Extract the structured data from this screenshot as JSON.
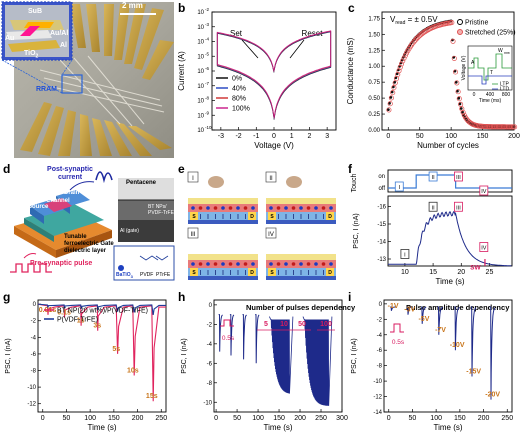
{
  "panels": {
    "a": {
      "label": "a",
      "scale_bar": "2 mm",
      "inset": {
        "top": "SuB",
        "au_al": "Au/Al",
        "au": "Au",
        "al": "Al",
        "tio2": "TiO",
        "tio2_sub": "2"
      },
      "rram": "RRAM"
    },
    "b": {
      "label": "b",
      "xlabel": "Voltage (V)",
      "ylabel": "Current (A)",
      "set": "Set",
      "reset": "Reset",
      "legend": [
        {
          "name": "0%",
          "color": "#000000"
        },
        {
          "name": "40%",
          "color": "#1f3fbf"
        },
        {
          "name": "80%",
          "color": "#cc2b2b"
        },
        {
          "name": "100%",
          "color": "#c71585"
        }
      ],
      "xticks": [
        "-3",
        "-2",
        "-1",
        "0",
        "1",
        "2",
        "3"
      ],
      "yticks": [
        "10",
        "10",
        "10",
        "10",
        "10",
        "10",
        "10",
        "10"
      ],
      "yexp": [
        "-2",
        "-3",
        "-4",
        "-5",
        "-6",
        "-7",
        "-8",
        "-9",
        "-10"
      ]
    },
    "c": {
      "label": "c",
      "vread": "V",
      "vread_sub": "read",
      "vread_val": " = ± 0.5V",
      "xlabel": "Number of cycles",
      "ylabel": "Conductance (mS)",
      "legend": [
        {
          "name": "Pristine",
          "color": "#000000"
        },
        {
          "name": "Stretched (25%)",
          "color": "#e05050"
        }
      ],
      "xticks": [
        "0",
        "50",
        "100",
        "150",
        "200"
      ],
      "yticks": [
        "0.00",
        "0.25",
        "0.50",
        "0.75",
        "1.00",
        "1.25",
        "1.50",
        "1.75"
      ],
      "inset": {
        "ylabel": "Voltage (V)",
        "xlabel": "Time (ms)",
        "xticks": [
          "0",
          "400",
          "800"
        ],
        "ltp": "LTP",
        "ltd": "LTD",
        "a": "A",
        "w": "W",
        "ts": "T",
        "ts_sub": "s",
        "stars": "***"
      }
    },
    "d": {
      "label": "d",
      "post": "Post-synaptic current",
      "pre": "Pre-synaptic pulse",
      "source": "Source",
      "channel": "Channel",
      "drain": "Drain",
      "gate": "Tunable ferroelectric Gate dielectric layer",
      "pentacene": "Pentacene",
      "bt": "BT NPs/ PVDF-TrFE",
      "alg": "Al (gate)",
      "bat": "BaTiO",
      "bat_sub": "3",
      "pvdf": "PVDF",
      "ptrfe": "PTrFE"
    },
    "e": {
      "label": "e",
      "roman": [
        "I",
        "II",
        "III",
        "IV"
      ],
      "s": "S",
      "d": "D"
    },
    "f": {
      "label": "f",
      "touch": "Touch",
      "on": "on",
      "off": "off",
      "ylabel": "PSC, I",
      "ylabel_sub": "PSC",
      "ylabel_unit": " (nA)",
      "xlabel": "Time (s)",
      "sw": "SW",
      "roman": [
        "I",
        "II",
        "III",
        "IV"
      ],
      "xticks": [
        "10",
        "15",
        "20",
        "25"
      ],
      "yticks": [
        "-16",
        "-15",
        "-14",
        "-13"
      ]
    },
    "g": {
      "label": "g",
      "ylabel": "PSC, I",
      "ylabel_sub": "PSC",
      "ylabel_unit": " (nA)",
      "xlabel": "Time (s)",
      "legend": [
        {
          "name": "BT NP(20 wt%)/P(VDF-TrFE)",
          "color": "#e0245e"
        },
        {
          "name": "P(VDF-TrFE)",
          "color": "#1e3c9a"
        }
      ],
      "durations": [
        "0.01s",
        "0.1s",
        "1s",
        "3s",
        "5s",
        "10s",
        "15s"
      ],
      "xticks": [
        "0",
        "50",
        "100",
        "150",
        "200",
        "250"
      ],
      "yticks": [
        "0",
        "-2",
        "-4",
        "-6",
        "-8",
        "-10",
        "-12"
      ]
    },
    "h": {
      "label": "h",
      "title": "Number of pulses dependency",
      "pulse": "0.5s",
      "counts": [
        "5",
        "10",
        "50",
        "100"
      ],
      "ylabel": "PSC, I",
      "ylabel_sub": "PSC",
      "ylabel_unit": " (nA)",
      "xlabel": "Time (s)",
      "xticks": [
        "0",
        "50",
        "100",
        "150",
        "200",
        "250",
        "300"
      ],
      "yticks": [
        "0",
        "-2",
        "-4",
        "-6",
        "-8",
        "-10"
      ]
    },
    "i": {
      "label": "i",
      "title": "Pulse amplitude dependency",
      "pulse": "0.5s",
      "amps": [
        "-1V",
        "-3V",
        "-5V",
        "-7V",
        "-10V",
        "-15V",
        "-20V"
      ],
      "ylabel": "PSC, I",
      "ylabel_sub": "PSC",
      "ylabel_unit": " (nA)",
      "xlabel": "Time (s)",
      "xticks": [
        "0",
        "50",
        "100",
        "150",
        "200",
        "250"
      ],
      "yticks": [
        "0",
        "-2",
        "-4",
        "-6",
        "-8",
        "-10",
        "-12",
        "-14"
      ]
    }
  },
  "chart_data": [
    {
      "type": "line",
      "panel": "b",
      "xlabel": "Voltage (V)",
      "ylabel": "Current (A)",
      "xlim": [
        -3.5,
        3.5
      ],
      "ylog": true,
      "ylim": [
        1e-10,
        0.01
      ],
      "series": [
        {
          "name": "0%",
          "values": []
        },
        {
          "name": "40%",
          "values": []
        },
        {
          "name": "80%",
          "values": []
        },
        {
          "name": "100%",
          "values": []
        }
      ]
    },
    {
      "type": "scatter",
      "panel": "c",
      "xlabel": "Number of cycles",
      "ylabel": "Conductance (mS)",
      "xlim": [
        -10,
        200
      ],
      "ylim": [
        0,
        1.8
      ],
      "series": [
        {
          "name": "Pristine",
          "values": []
        },
        {
          "name": "Stretched (25%)",
          "values": []
        }
      ]
    },
    {
      "type": "line",
      "panel": "g",
      "xlabel": "Time (s)",
      "xlim": [
        -10,
        260
      ],
      "ylim": [
        -13,
        0.5
      ],
      "series": [
        {
          "name": "BT NP(20 wt%)/P(VDF-TrFE)",
          "peaks": [
            -1.3,
            -1.6,
            -2.6,
            -3.2,
            -6.0,
            -8.6,
            -11.7
          ],
          "peak_times": [
            10,
            45,
            80,
            115,
            155,
            190,
            230
          ]
        },
        {
          "name": "P(VDF-TrFE)",
          "peaks": [
            -0.4,
            -0.5,
            -0.6,
            -0.7,
            -0.9,
            -1.0,
            -1.3
          ],
          "peak_times": [
            10,
            45,
            80,
            115,
            155,
            190,
            230
          ]
        }
      ]
    },
    {
      "type": "line",
      "panel": "h",
      "xlabel": "Time (s)",
      "xlim": [
        -5,
        300
      ],
      "ylim": [
        -11,
        0.5
      ],
      "series": [
        {
          "name": "",
          "peaks": [
            -4.8,
            -5.2,
            -5.6,
            -6.0,
            -9.2,
            -10.4
          ],
          "peak_times": [
            8,
            35,
            65,
            95,
            150,
            225
          ]
        }
      ]
    },
    {
      "type": "line",
      "panel": "i",
      "xlabel": "Time (s)",
      "xlim": [
        -10,
        260
      ],
      "ylim": [
        -14,
        0.5
      ],
      "series": [
        {
          "name": "",
          "peaks": [
            -0.9,
            -1.4,
            -2.6,
            -4.0,
            -6.0,
            -9.4,
            -12.4
          ],
          "peak_times": [
            5,
            40,
            70,
            105,
            140,
            175,
            215
          ]
        }
      ]
    }
  ]
}
